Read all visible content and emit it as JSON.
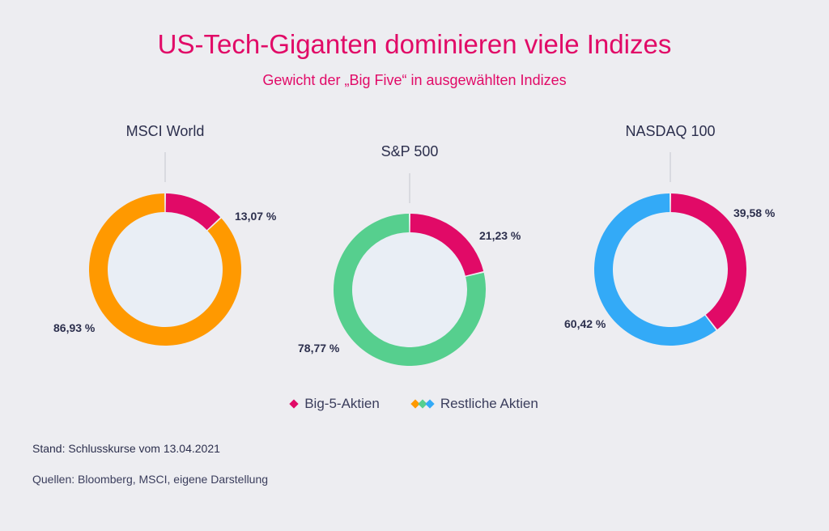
{
  "title": "US-Tech-Giganten dominieren viele Indizes",
  "subtitle": "Gewicht der „Big Five“ in ausgewählten Indizes",
  "colors": {
    "big5": "#e10a67",
    "msci": "#ff9900",
    "sp": "#56cf8e",
    "nasdaq": "#33aaf7",
    "center": "#e9eef5"
  },
  "chart_data": {
    "type": "pie",
    "legend": [
      {
        "label": "Big-5-Aktien",
        "icon": "pink-diamond"
      },
      {
        "label": "Restliche Aktien",
        "icon": "multicolor-diamonds"
      }
    ],
    "charts": [
      {
        "index_name": "MSCI World",
        "slices": [
          {
            "name": "Big-5-Aktien",
            "value": 13.07,
            "label": "13,07 %"
          },
          {
            "name": "Restliche Aktien",
            "value": 86.93,
            "label": "86,93 %"
          }
        ]
      },
      {
        "index_name": "S&P 500",
        "slices": [
          {
            "name": "Big-5-Aktien",
            "value": 21.23,
            "label": "21,23 %"
          },
          {
            "name": "Restliche Aktien",
            "value": 78.77,
            "label": "78,77 %"
          }
        ]
      },
      {
        "index_name": "NASDAQ 100",
        "slices": [
          {
            "name": "Big-5-Aktien",
            "value": 39.58,
            "label": "39,58 %"
          },
          {
            "name": "Restliche Aktien",
            "value": 60.42,
            "label": "60,42 %"
          }
        ]
      }
    ]
  },
  "notes": {
    "stand": "Stand: Schlusskurse vom 13.04.2021",
    "quellen": "Quellen: Bloomberg, MSCI, eigene Darstellung"
  }
}
